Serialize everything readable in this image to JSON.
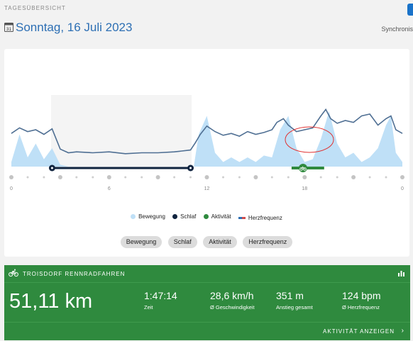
{
  "header": {
    "section_label": "TAGESÜBERSICHT",
    "date_title": "Sonntag, 16 Juli 2023",
    "calendar_day": "31",
    "sync_label": "Synchronis"
  },
  "chart_data": {
    "type": "line",
    "x_unit": "hour",
    "xlim": [
      0,
      24
    ],
    "x_ticks": [
      "0",
      "6",
      "12",
      "18",
      "0"
    ],
    "series": [
      {
        "name": "Herzfrequenz",
        "x": [
          0,
          0.5,
          1,
          1.5,
          2,
          2.5,
          3,
          3.5,
          4,
          5,
          6,
          7,
          8,
          9,
          10,
          11,
          11.3,
          11.6,
          12,
          12.5,
          13,
          13.5,
          14,
          14.5,
          15,
          15.5,
          16,
          16.3,
          16.7,
          17,
          17.5,
          18,
          18.5,
          19,
          19.3,
          19.6,
          20,
          20.5,
          21,
          21.5,
          22,
          22.5,
          23,
          23.3,
          23.6,
          24
        ],
        "values": [
          0.36,
          0.42,
          0.38,
          0.4,
          0.35,
          0.41,
          0.19,
          0.15,
          0.16,
          0.15,
          0.16,
          0.14,
          0.15,
          0.15,
          0.16,
          0.18,
          0.26,
          0.35,
          0.44,
          0.38,
          0.34,
          0.36,
          0.33,
          0.38,
          0.35,
          0.37,
          0.4,
          0.48,
          0.52,
          0.45,
          0.38,
          0.4,
          0.42,
          0.55,
          0.62,
          0.52,
          0.47,
          0.5,
          0.48,
          0.55,
          0.57,
          0.45,
          0.52,
          0.55,
          0.4,
          0.36
        ]
      },
      {
        "name": "Bewegung",
        "x": [
          0,
          0.5,
          1,
          1.5,
          2,
          2.5,
          3,
          3.5,
          11.2,
          11.5,
          12,
          12.5,
          13,
          13.5,
          14,
          14.5,
          15,
          15.5,
          16,
          16.5,
          17,
          17.5,
          18,
          18.5,
          19,
          19.5,
          20,
          20.5,
          21,
          21.5,
          22,
          22.5,
          23,
          23.3,
          23.6,
          24
        ],
        "values": [
          0.05,
          0.35,
          0.1,
          0.25,
          0.08,
          0.2,
          0.02,
          0.0,
          0.0,
          0.35,
          0.55,
          0.15,
          0.05,
          0.1,
          0.05,
          0.1,
          0.05,
          0.12,
          0.1,
          0.4,
          0.55,
          0.2,
          0.05,
          0.08,
          0.3,
          0.6,
          0.25,
          0.1,
          0.15,
          0.05,
          0.1,
          0.2,
          0.45,
          0.55,
          0.15,
          0.05
        ]
      }
    ],
    "sleep_range": [
      2.5,
      11
    ],
    "activity_range": [
      17.2,
      19.2
    ]
  },
  "legend": {
    "movement": "Bewegung",
    "sleep": "Schlaf",
    "activity": "Aktivität",
    "heart_rate": "Herzfrequenz"
  },
  "filters": [
    "Bewegung",
    "Schlaf",
    "Aktivität",
    "Herzfrequenz"
  ],
  "activity": {
    "title": "TROISDORF RENNRADFAHREN",
    "distance": "51,11 km",
    "time_value": "1:47:14",
    "time_label": "Zeit",
    "speed_value": "28,6 km/h",
    "speed_label": "Ø Geschwindigkeit",
    "ascent_value": "351 m",
    "ascent_label": "Anstieg gesamt",
    "hr_value": "124 bpm",
    "hr_label": "Ø Herzfrequenz",
    "show_label": "AKTIVITÄT ANZEIGEN"
  },
  "colors": {
    "accent": "#2d6fb4",
    "movement": "#bfe0f7",
    "sleep": "#10243f",
    "activity": "#2f8a3e",
    "annotation": "#e03030"
  }
}
